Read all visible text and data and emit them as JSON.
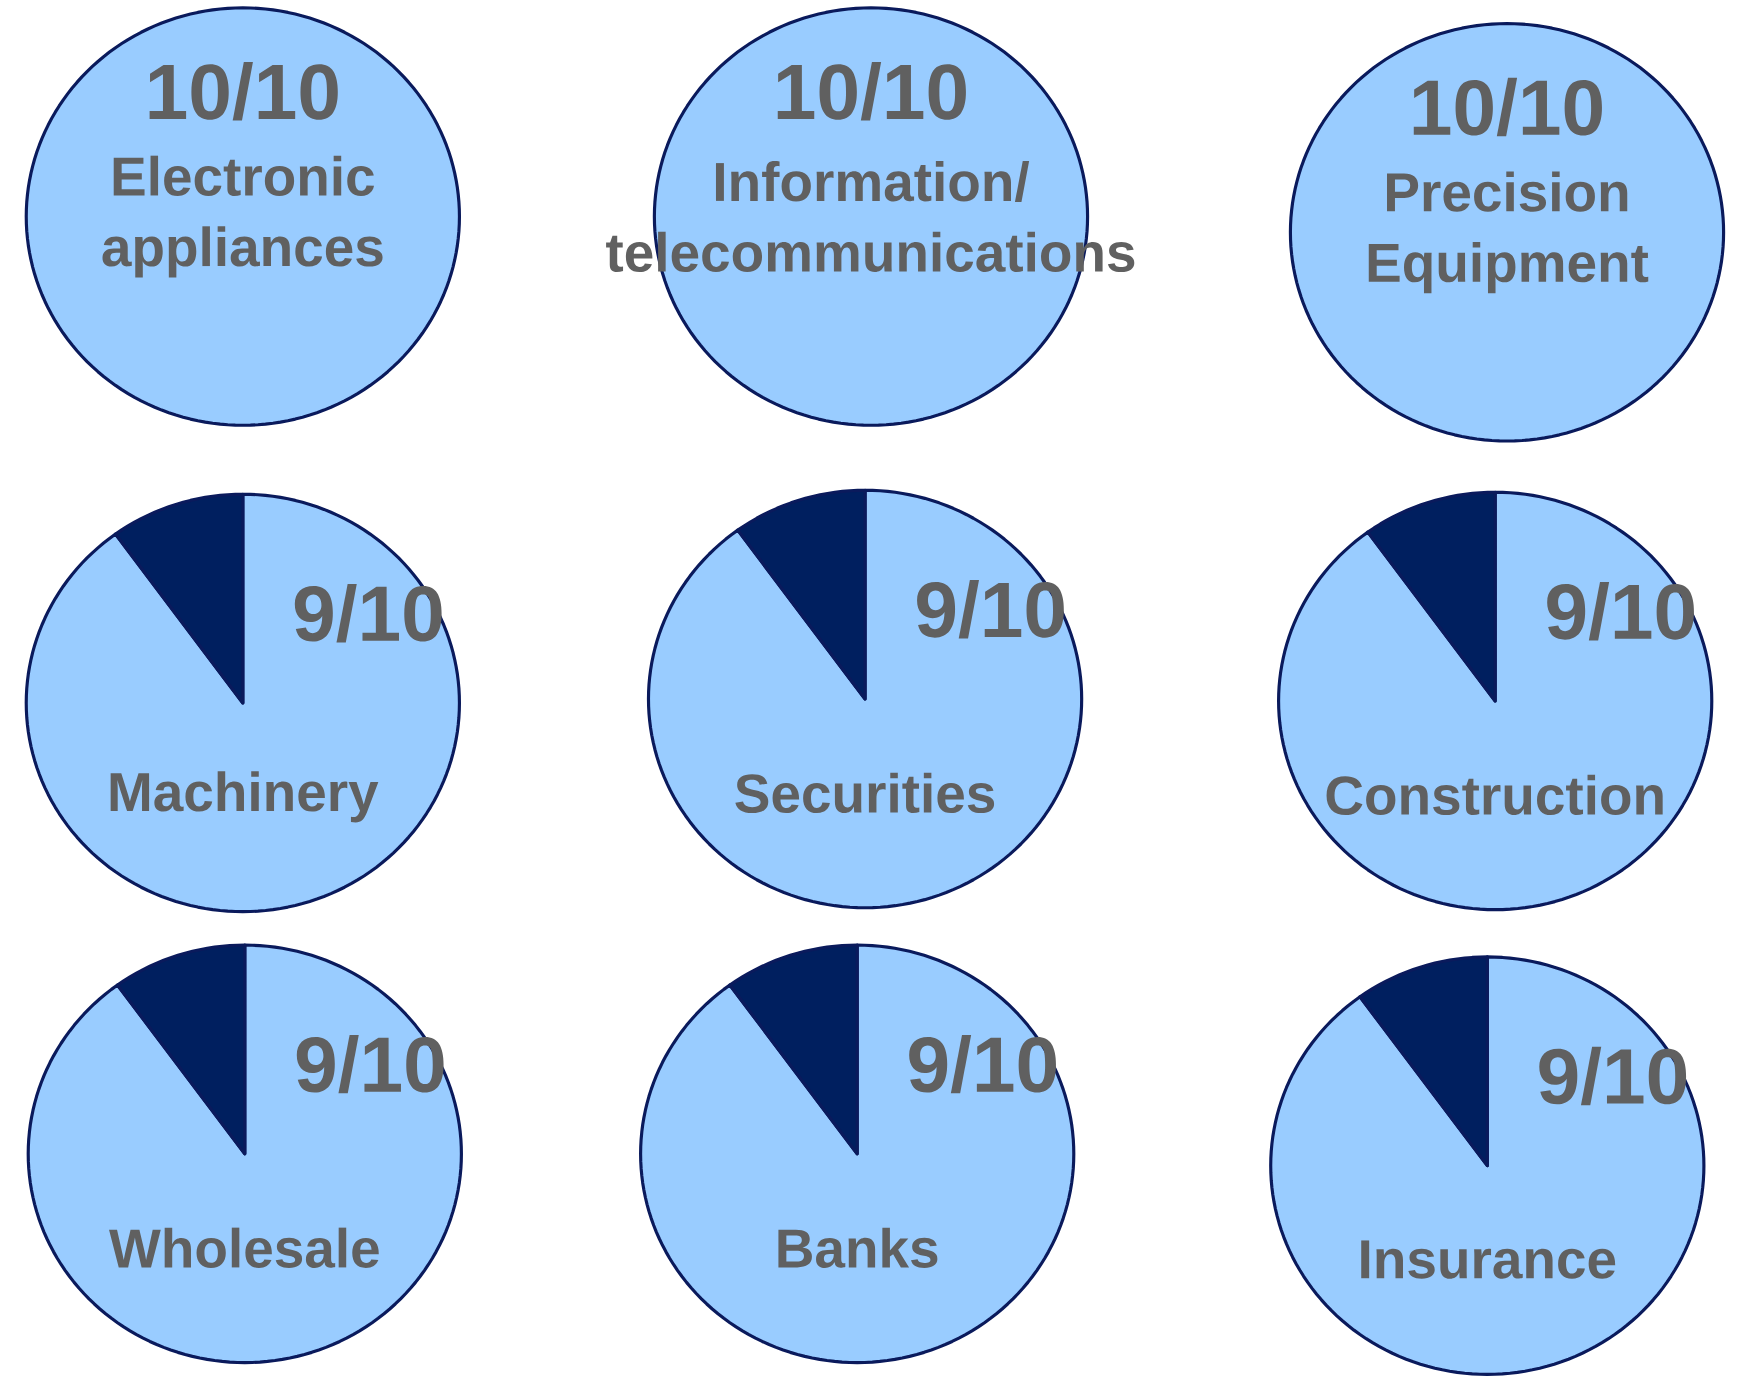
{
  "chart_data": [
    {
      "type": "pie",
      "title": "Electronic appliances",
      "categories": [
        null
      ],
      "values": [
        100
      ],
      "colors": [
        "#99ccff"
      ],
      "annotations": [
        "10/10"
      ]
    },
    {
      "type": "pie",
      "title": "Information/ telecommunications",
      "categories": [
        null
      ],
      "values": [
        100
      ],
      "colors": [
        "#99ccff"
      ],
      "annotations": [
        "10/10"
      ]
    },
    {
      "type": "pie",
      "title": "Precision Equipment",
      "categories": [
        null
      ],
      "values": [
        100
      ],
      "colors": [
        "#99ccff"
      ],
      "annotations": [
        "10/10"
      ]
    },
    {
      "type": "pie",
      "title": "Machinery",
      "categories": [
        null,
        null
      ],
      "values": [
        90,
        10
      ],
      "colors": [
        "#99ccff",
        "#001f5f"
      ],
      "annotations": [
        "9/10"
      ]
    },
    {
      "type": "pie",
      "title": "Securities",
      "categories": [
        null,
        null
      ],
      "values": [
        90,
        10
      ],
      "colors": [
        "#99ccff",
        "#001f5f"
      ],
      "annotations": [
        "9/10"
      ]
    },
    {
      "type": "pie",
      "title": "Construction",
      "categories": [
        null,
        null
      ],
      "values": [
        90,
        10
      ],
      "colors": [
        "#99ccff",
        "#001f5f"
      ],
      "annotations": [
        "9/10"
      ]
    },
    {
      "type": "pie",
      "title": "Wholesale",
      "categories": [
        null,
        null
      ],
      "values": [
        90,
        10
      ],
      "colors": [
        "#99ccff",
        "#001f5f"
      ],
      "annotations": [
        "9/10"
      ]
    },
    {
      "type": "pie",
      "title": "Banks",
      "categories": [
        null,
        null
      ],
      "values": [
        90,
        10
      ],
      "colors": [
        "#99ccff",
        "#001f5f"
      ],
      "annotations": [
        "9/10"
      ]
    },
    {
      "type": "pie",
      "title": "Insurance",
      "categories": [
        null,
        null
      ],
      "values": [
        90,
        10
      ],
      "colors": [
        "#99ccff",
        "#001f5f"
      ],
      "annotations": [
        "9/10"
      ]
    }
  ]
}
